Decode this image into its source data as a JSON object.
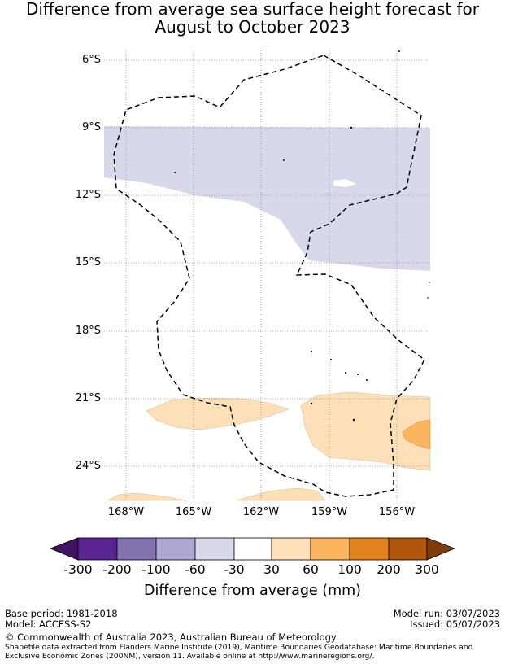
{
  "title_line1": "Difference from average sea surface height forecast for",
  "title_line2": "August to October 2023",
  "lat_ticks": [
    "6°S",
    "9°S",
    "12°S",
    "15°S",
    "18°S",
    "21°S",
    "24°S"
  ],
  "lon_ticks": [
    "168°W",
    "165°W",
    "162°W",
    "159°W",
    "156°W"
  ],
  "colorbar": {
    "title": "Difference from average (mm)",
    "labels": [
      "-300",
      "-200",
      "-100",
      "-60",
      "-30",
      "30",
      "60",
      "100",
      "200",
      "300"
    ],
    "colors": [
      "#3f1460",
      "#5a2590",
      "#8372b0",
      "#aea6d2",
      "#d8d8ea",
      "#ffffff",
      "#fde0b8",
      "#fbb55e",
      "#e1821a",
      "#b0560c",
      "#7f3c0c"
    ]
  },
  "footer": {
    "base_period": "Base period: 1981-2018",
    "model": "Model: ACCESS-S2",
    "model_run": "Model run: 03/07/2023",
    "issued": "Issued: 05/07/2023",
    "copyright": "© Commonwealth of Australia 2023, Australian Bureau of Meteorology",
    "source_line1": "Shapefile data extracted from Flanders Marine Institute (2019), Maritime Boundaries Geodatabase: Maritime Boundaries and",
    "source_line2": "Exclusive Economic Zones (200NM), version 11. Available online at http://www.marineregions.org/."
  }
}
